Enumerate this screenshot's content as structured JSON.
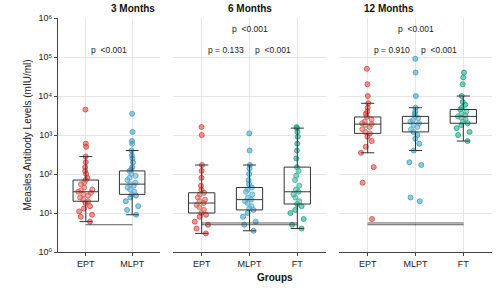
{
  "chart_data": {
    "type": "box",
    "x_label": "Groups",
    "y_label": "Measles Antibody Levels (mIU/ml)",
    "log": "y",
    "grid": true,
    "ylim": [
      1,
      1000000
    ],
    "yticks": [
      {
        "value": 1,
        "label": "10⁰"
      },
      {
        "value": 10,
        "label": "10¹"
      },
      {
        "value": 100,
        "label": "10²"
      },
      {
        "value": 1000,
        "label": "10³"
      },
      {
        "value": 10000,
        "label": "10⁴"
      },
      {
        "value": 100000,
        "label": "10⁵"
      },
      {
        "value": 1000000,
        "label": "10⁶"
      }
    ],
    "panels": [
      {
        "title": "3 Months",
        "groups": [
          {
            "name": "EPT",
            "color": "#d9433a",
            "q1": 20,
            "median": 35,
            "q3": 70,
            "lowerfence": 6,
            "upperfence": 280,
            "values": [
              4500,
              600,
              500,
              280,
              200,
              150,
              120,
              100,
              80,
              70,
              60,
              55,
              45,
              40,
              38,
              35,
              33,
              30,
              28,
              25,
              22,
              20,
              18,
              15,
              13,
              11,
              9,
              8,
              6
            ]
          },
          {
            "name": "MLPT",
            "color": "#3a9dc6",
            "q1": 30,
            "median": 55,
            "q3": 120,
            "lowerfence": 9,
            "upperfence": 400,
            "values": [
              3500,
              1200,
              700,
              600,
              400,
              300,
              250,
              200,
              150,
              130,
              120,
              100,
              90,
              80,
              70,
              60,
              55,
              50,
              45,
              40,
              35,
              30,
              28,
              25,
              20,
              15,
              12,
              9
            ]
          }
        ],
        "comparisons": [
          {
            "from": "EPT",
            "to": "MLPT",
            "label": "p  <0.001"
          }
        ]
      },
      {
        "title": "6 Months",
        "groups": [
          {
            "name": "EPT",
            "color": "#d9433a",
            "q1": 10,
            "median": 18,
            "q3": 33,
            "lowerfence": 3,
            "upperfence": 170,
            "values": [
              1600,
              1000,
              170,
              120,
              80,
              50,
              40,
              33,
              30,
              25,
              22,
              20,
              18,
              16,
              14,
              12,
              10,
              9,
              8,
              6,
              5,
              4,
              3
            ]
          },
          {
            "name": "MLPT",
            "color": "#3a9dc6",
            "q1": 12,
            "median": 22,
            "q3": 45,
            "lowerfence": 3.5,
            "upperfence": 170,
            "values": [
              1100,
              400,
              170,
              140,
              100,
              70,
              55,
              45,
              40,
              35,
              30,
              25,
              22,
              20,
              18,
              15,
              13,
              12,
              10,
              8,
              6,
              5,
              3.5
            ]
          },
          {
            "name": "FT",
            "color": "#17a385",
            "q1": 17,
            "median": 35,
            "q3": 150,
            "lowerfence": 4,
            "upperfence": 1500,
            "values": [
              1600,
              1500,
              1200,
              900,
              600,
              400,
              250,
              150,
              120,
              90,
              70,
              50,
              40,
              35,
              30,
              25,
              20,
              17,
              15,
              12,
              10,
              7,
              5,
              4
            ]
          }
        ],
        "comparisons": [
          {
            "from": "EPT",
            "to": "MLPT",
            "label": "p = 0.133"
          },
          {
            "from": "MLPT",
            "to": "FT",
            "label": "p  <0.001"
          },
          {
            "from": "EPT",
            "to": "FT",
            "label": "p  <0.001"
          }
        ]
      },
      {
        "title": "12 Months",
        "groups": [
          {
            "name": "EPT",
            "color": "#d9433a",
            "q1": 1100,
            "median": 1900,
            "q3": 2900,
            "lowerfence": 350,
            "upperfence": 6500,
            "values": [
              50000,
              20000,
              10000,
              6500,
              5000,
              4000,
              3500,
              2900,
              2500,
              2200,
              2000,
              1900,
              1800,
              1600,
              1400,
              1200,
              1100,
              900,
              700,
              500,
              350,
              150,
              60,
              7
            ]
          },
          {
            "name": "MLPT",
            "color": "#3a9dc6",
            "q1": 1200,
            "median": 2000,
            "q3": 3000,
            "lowerfence": 400,
            "upperfence": 5000,
            "values": [
              90000,
              40000,
              10000,
              5000,
              4000,
              3500,
              3000,
              2700,
              2400,
              2200,
              2000,
              1800,
              1600,
              1400,
              1200,
              1000,
              800,
              600,
              400,
              200,
              170,
              25,
              20
            ]
          },
          {
            "name": "FT",
            "color": "#17a385",
            "q1": 2000,
            "median": 3000,
            "q3": 4500,
            "lowerfence": 700,
            "upperfence": 10000,
            "values": [
              40000,
              30000,
              20000,
              10000,
              7000,
              6000,
              5000,
              4500,
              4000,
              3500,
              3200,
              3000,
              2800,
              2500,
              2200,
              2000,
              1800,
              1500,
              1200,
              1000,
              700
            ]
          }
        ],
        "comparisons": [
          {
            "from": "EPT",
            "to": "MLPT",
            "label": "p = 0.910"
          },
          {
            "from": "MLPT",
            "to": "FT",
            "label": "p  <0.001"
          },
          {
            "from": "EPT",
            "to": "FT",
            "label": "p  <0.001"
          }
        ]
      }
    ]
  }
}
